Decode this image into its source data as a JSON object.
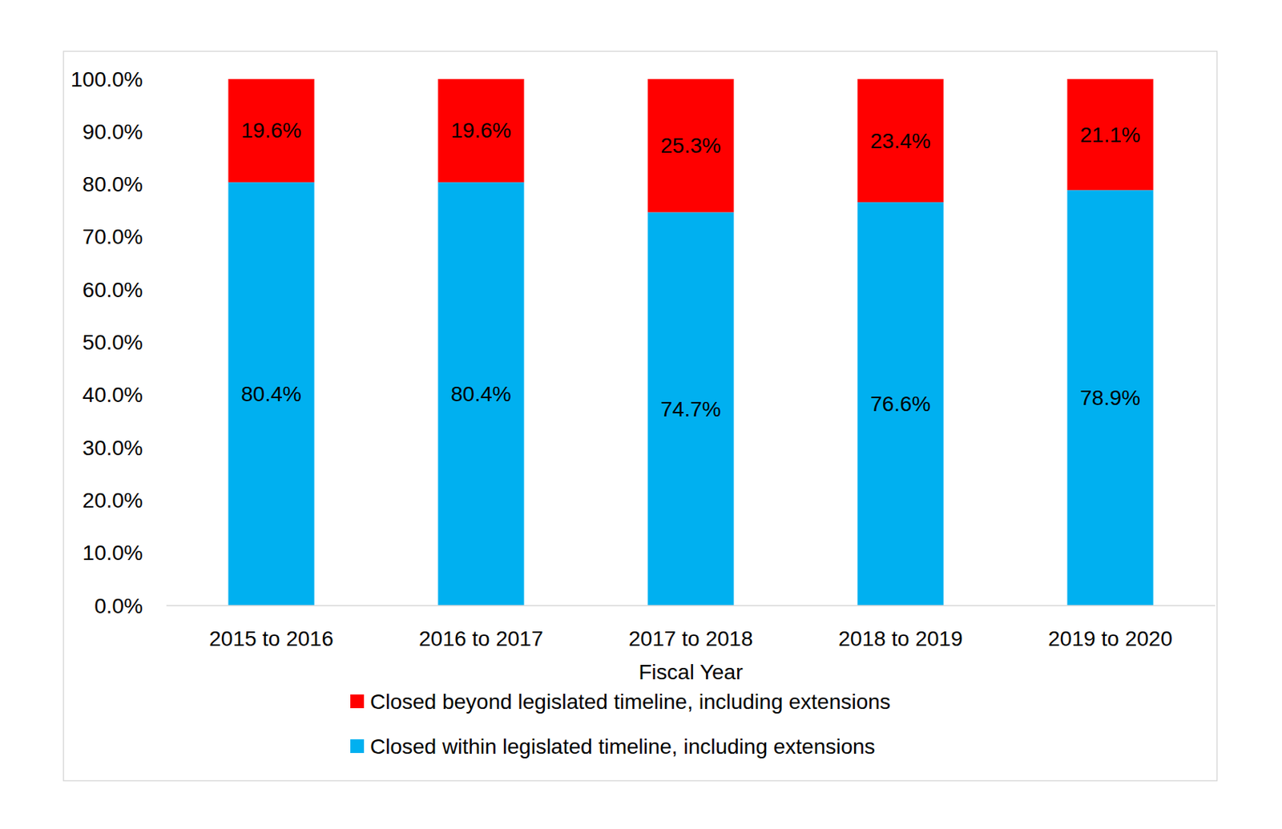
{
  "chart_data": {
    "type": "bar",
    "stacked": true,
    "data_labels": true,
    "grid": false,
    "x_label": "Fiscal Year",
    "categories": [
      "2015 to 2016",
      "2016 to 2017",
      "2017 to 2018",
      "2018 to 2019",
      "2019 to 2020"
    ],
    "series": [
      {
        "name": "Closed within legislated timeline, including extensions",
        "color": "#00b0f0",
        "values": [
          80.4,
          80.4,
          74.7,
          76.6,
          78.9
        ],
        "value_labels": [
          "80.4%",
          "80.4%",
          "74.7%",
          "76.6%",
          "78.9%"
        ]
      },
      {
        "name": "Closed beyond legislated timeline, including extensions",
        "color": "#ff0000",
        "values": [
          19.6,
          19.6,
          25.3,
          23.4,
          21.1
        ],
        "value_labels": [
          "19.6%",
          "19.6%",
          "25.3%",
          "23.4%",
          "21.1%"
        ]
      }
    ],
    "ylim": [
      0,
      100
    ],
    "yticks": [
      {
        "value": 0,
        "label": "0.0%"
      },
      {
        "value": 10,
        "label": "10.0%"
      },
      {
        "value": 20,
        "label": "20.0%"
      },
      {
        "value": 30,
        "label": "30.0%"
      },
      {
        "value": 40,
        "label": "40.0%"
      },
      {
        "value": 50,
        "label": "50.0%"
      },
      {
        "value": 60,
        "label": "60.0%"
      },
      {
        "value": 70,
        "label": "70.0%"
      },
      {
        "value": 80,
        "label": "80.0%"
      },
      {
        "value": 90,
        "label": "90.0%"
      },
      {
        "value": 100,
        "label": "100.0%"
      }
    ],
    "legend": "bottom"
  }
}
